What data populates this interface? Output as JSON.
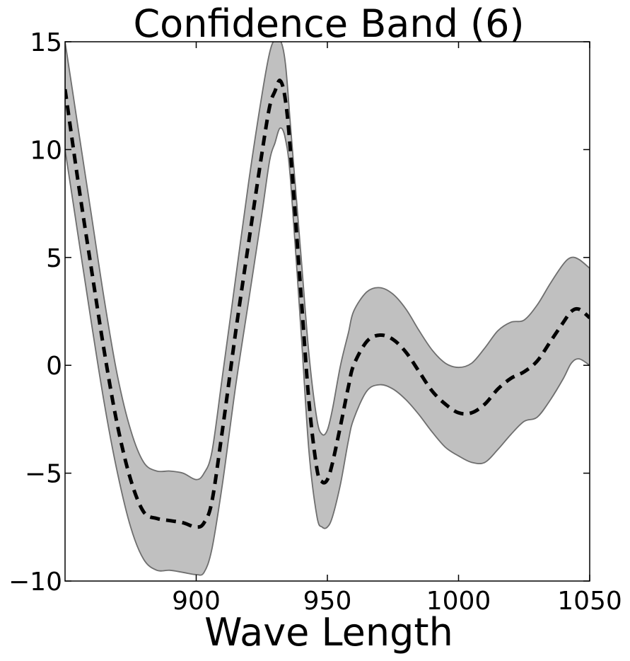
{
  "chart_data": {
    "type": "area",
    "title": "Confidence Band (6)",
    "xlabel": "Wave Length",
    "ylabel": "",
    "xlim": [
      850,
      1050
    ],
    "ylim": [
      -10,
      15
    ],
    "xticks": [
      {
        "value": 900,
        "label": "900"
      },
      {
        "value": 950,
        "label": "950"
      },
      {
        "value": 1000,
        "label": "1000"
      },
      {
        "value": 1050,
        "label": "1050"
      }
    ],
    "yticks": [
      {
        "value": 15,
        "label": "15"
      },
      {
        "value": 10,
        "label": "10"
      },
      {
        "value": 5,
        "label": "5"
      },
      {
        "value": 0,
        "label": "0"
      },
      {
        "value": -5,
        "label": "−5"
      },
      {
        "value": -10,
        "label": "−10"
      }
    ],
    "grid": false,
    "colors": {
      "band_fill": "#c0c0c0",
      "band_edge": "#6e6e6e",
      "mean_line": "#000000"
    },
    "x": [
      850,
      855,
      860,
      865,
      870,
      875,
      880,
      885,
      890,
      895,
      900,
      903,
      906,
      910,
      915,
      920,
      925,
      928,
      930,
      932,
      934,
      936,
      940,
      943,
      946,
      948,
      950,
      952,
      955,
      958,
      960,
      965,
      970,
      975,
      980,
      985,
      990,
      995,
      1000,
      1005,
      1010,
      1015,
      1020,
      1025,
      1030,
      1035,
      1040,
      1043,
      1046,
      1050
    ],
    "series": [
      {
        "role": "upper",
        "values": [
          15.0,
          11.0,
          7.0,
          3.0,
          -0.5,
          -3.0,
          -4.5,
          -4.9,
          -4.9,
          -5.0,
          -5.3,
          -5.0,
          -4.0,
          -0.5,
          4.0,
          8.5,
          12.5,
          14.5,
          15.1,
          15.1,
          14.0,
          11.0,
          5.0,
          0.5,
          -2.5,
          -3.2,
          -3.0,
          -2.0,
          0.0,
          1.5,
          2.5,
          3.4,
          3.6,
          3.3,
          2.6,
          1.6,
          0.7,
          0.1,
          -0.1,
          0.1,
          0.8,
          1.6,
          2.0,
          2.1,
          2.8,
          3.8,
          4.7,
          5.0,
          4.9,
          4.5
        ]
      },
      {
        "role": "lower",
        "values": [
          10.0,
          6.0,
          2.0,
          -1.8,
          -5.0,
          -7.5,
          -9.0,
          -9.5,
          -9.5,
          -9.6,
          -9.7,
          -9.6,
          -8.5,
          -5.5,
          -1.0,
          3.0,
          7.0,
          9.5,
          10.3,
          11.0,
          10.5,
          8.5,
          1.5,
          -4.0,
          -7.0,
          -7.5,
          -7.5,
          -7.0,
          -5.5,
          -3.5,
          -2.5,
          -1.2,
          -0.9,
          -1.1,
          -1.6,
          -2.3,
          -3.1,
          -3.8,
          -4.2,
          -4.5,
          -4.5,
          -3.9,
          -3.2,
          -2.6,
          -2.4,
          -1.6,
          -0.6,
          0.1,
          0.3,
          0.0
        ]
      },
      {
        "role": "mean",
        "values": [
          12.8,
          8.5,
          4.5,
          0.6,
          -2.8,
          -5.3,
          -6.8,
          -7.1,
          -7.2,
          -7.3,
          -7.5,
          -7.3,
          -6.3,
          -3.0,
          1.5,
          5.7,
          9.8,
          12.0,
          12.7,
          13.2,
          12.3,
          9.8,
          3.2,
          -1.7,
          -4.8,
          -5.4,
          -5.3,
          -4.5,
          -2.8,
          -1.0,
          0.0,
          1.1,
          1.4,
          1.2,
          0.6,
          -0.3,
          -1.2,
          -1.8,
          -2.2,
          -2.2,
          -1.8,
          -1.1,
          -0.6,
          -0.3,
          0.2,
          1.1,
          2.0,
          2.5,
          2.6,
          2.2
        ]
      }
    ]
  }
}
